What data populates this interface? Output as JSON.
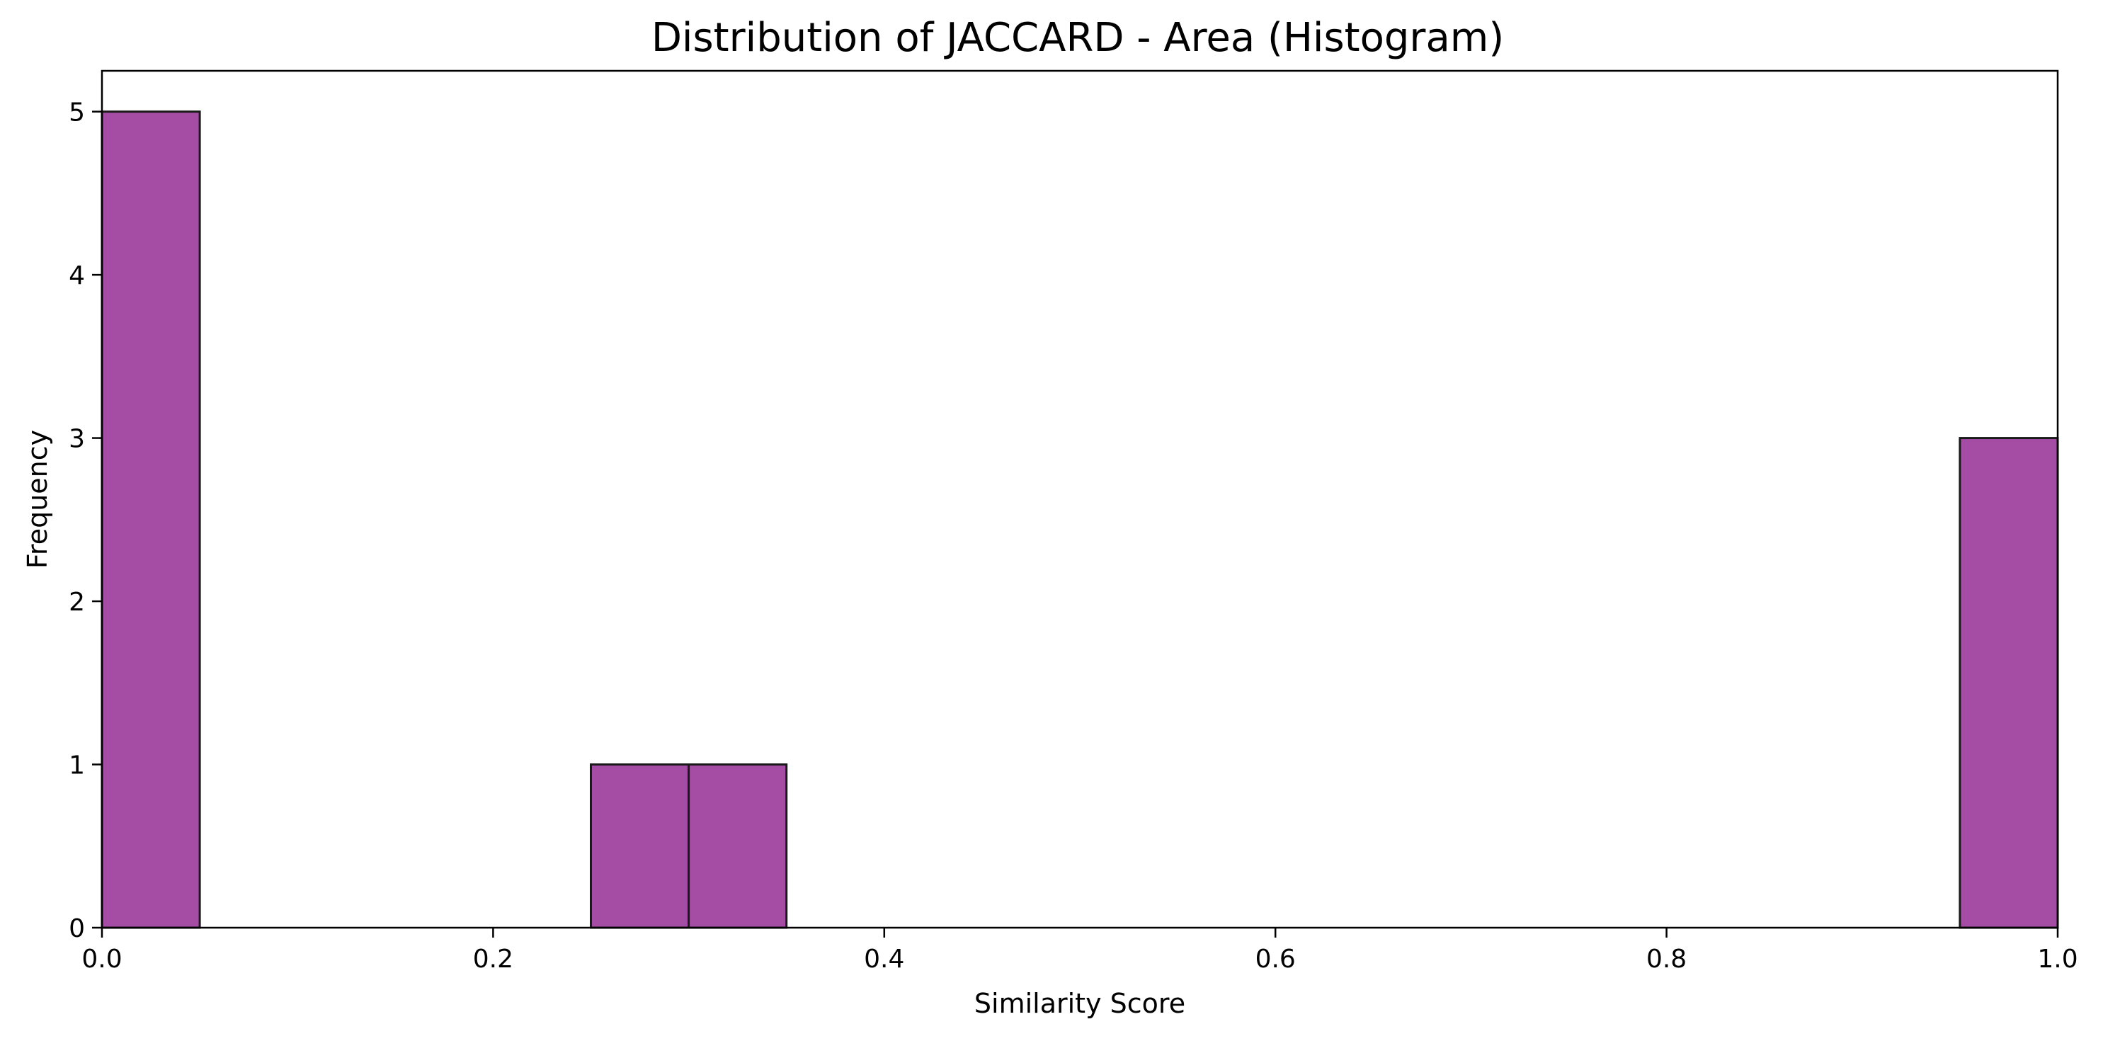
{
  "chart_data": {
    "type": "bar",
    "title": "Distribution of JACCARD - Area (Histogram)",
    "xlabel": "Similarity Score",
    "ylabel": "Frequency",
    "xlim": [
      0.0,
      1.0
    ],
    "ylim": [
      0,
      5.25
    ],
    "x_ticks": [
      "0.0",
      "0.2",
      "0.4",
      "0.6",
      "0.8",
      "1.0"
    ],
    "y_ticks": [
      "0",
      "1",
      "2",
      "3",
      "4",
      "5"
    ],
    "bins": [
      {
        "x0": 0.0,
        "x1": 0.05,
        "count": 5
      },
      {
        "x0": 0.25,
        "x1": 0.3,
        "count": 1
      },
      {
        "x0": 0.3,
        "x1": 0.35,
        "count": 1
      },
      {
        "x0": 0.95,
        "x1": 1.0,
        "count": 3
      }
    ],
    "bar_color": "#a54ca5",
    "edge_color": "#1a1a1a",
    "grid": false,
    "legend": "none"
  }
}
